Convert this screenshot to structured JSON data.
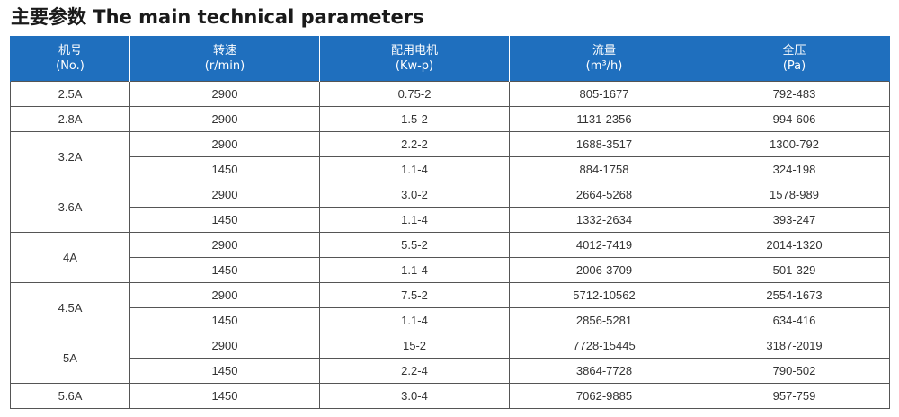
{
  "title": "主要参数 The main technical parameters",
  "headers": [
    {
      "cn": "机号",
      "en": "(No.)"
    },
    {
      "cn": "转速",
      "en": "(r/min)"
    },
    {
      "cn": "配用电机",
      "en": "(Kw-p)"
    },
    {
      "cn": "流量",
      "en": "(m³/h)"
    },
    {
      "cn": "全压",
      "en": "(Pa)"
    }
  ],
  "rows": [
    {
      "model": "2.5A",
      "entries": [
        {
          "speed": "2900",
          "motor": "0.75-2",
          "flow": "805-1677",
          "pressure": "792-483"
        }
      ]
    },
    {
      "model": "2.8A",
      "entries": [
        {
          "speed": "2900",
          "motor": "1.5-2",
          "flow": "1131-2356",
          "pressure": "994-606"
        }
      ]
    },
    {
      "model": "3.2A",
      "entries": [
        {
          "speed": "2900",
          "motor": "2.2-2",
          "flow": "1688-3517",
          "pressure": "1300-792"
        },
        {
          "speed": "1450",
          "motor": "1.1-4",
          "flow": "884-1758",
          "pressure": "324-198"
        }
      ]
    },
    {
      "model": "3.6A",
      "entries": [
        {
          "speed": "2900",
          "motor": "3.0-2",
          "flow": "2664-5268",
          "pressure": "1578-989"
        },
        {
          "speed": "1450",
          "motor": "1.1-4",
          "flow": "1332-2634",
          "pressure": "393-247"
        }
      ]
    },
    {
      "model": "4A",
      "entries": [
        {
          "speed": "2900",
          "motor": "5.5-2",
          "flow": "4012-7419",
          "pressure": "2014-1320"
        },
        {
          "speed": "1450",
          "motor": "1.1-4",
          "flow": "2006-3709",
          "pressure": "501-329"
        }
      ]
    },
    {
      "model": "4.5A",
      "entries": [
        {
          "speed": "2900",
          "motor": "7.5-2",
          "flow": "5712-10562",
          "pressure": "2554-1673"
        },
        {
          "speed": "1450",
          "motor": "1.1-4",
          "flow": "2856-5281",
          "pressure": "634-416"
        }
      ]
    },
    {
      "model": "5A",
      "entries": [
        {
          "speed": "2900",
          "motor": "15-2",
          "flow": "7728-15445",
          "pressure": "3187-2019"
        },
        {
          "speed": "1450",
          "motor": "2.2-4",
          "flow": "3864-7728",
          "pressure": "790-502"
        }
      ]
    },
    {
      "model": "5.6A",
      "entries": [
        {
          "speed": "1450",
          "motor": "3.0-4",
          "flow": "7062-9885",
          "pressure": "957-759"
        }
      ]
    }
  ]
}
